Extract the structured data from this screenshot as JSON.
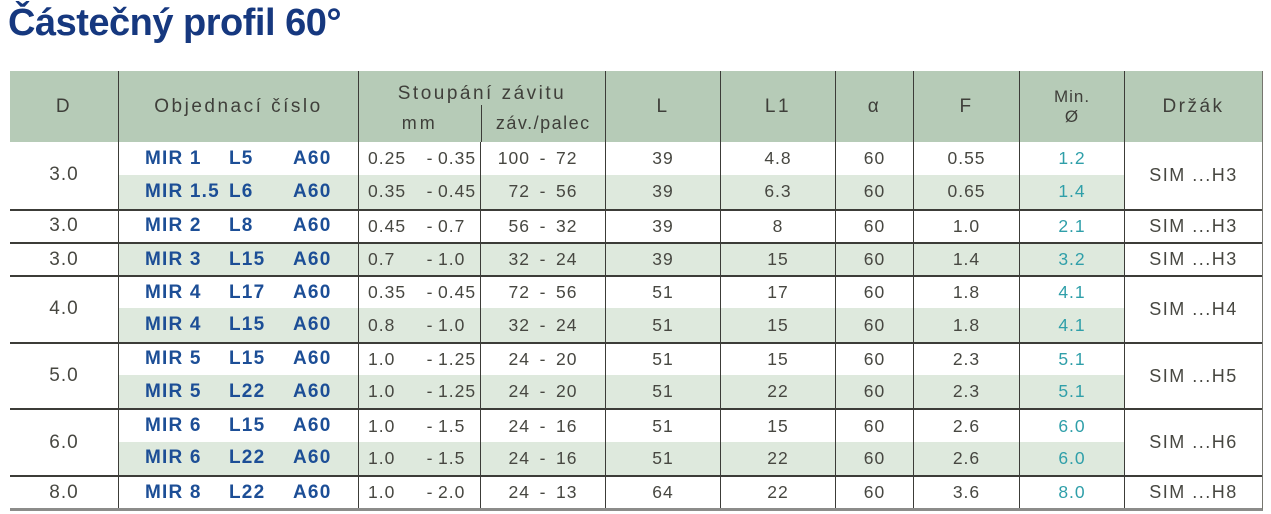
{
  "title": "Částečný profil 60°",
  "punctuation": {
    "dash": "-"
  },
  "colors": {
    "title_blue": "#16387f",
    "order_code_blue": "#1c4e96",
    "min_diameter_teal": "#2f9fa9",
    "header_green": "#b6cbb7",
    "row_stripe_green": "#dee9dd"
  },
  "headers": {
    "d": "D",
    "order": "Objednací číslo",
    "pitch_group": "Stoupání závitu",
    "pitch_mm": "mm",
    "pitch_tpi": "záv./palec",
    "l": "L",
    "l1": "L1",
    "alpha": "α",
    "f": "F",
    "min_line1": "Min.",
    "min_line2": "Ø",
    "holder": "Držák"
  },
  "groups": [
    {
      "d": "3.0",
      "holder": "SIM ...H3"
    },
    {
      "d": "3.0",
      "holder": "SIM ...H3"
    },
    {
      "d": "3.0",
      "holder": "SIM ...H3"
    },
    {
      "d": "4.0",
      "holder": "SIM ...H4"
    },
    {
      "d": "5.0",
      "holder": "SIM ...H5"
    },
    {
      "d": "6.0",
      "holder": "SIM ...H6"
    },
    {
      "d": "8.0",
      "holder": "SIM ...H8"
    }
  ],
  "rows": [
    {
      "code_mir": "MIR 1",
      "code_l": "L5",
      "code_a": "A60",
      "mm_min": "0.25",
      "mm_max": "0.35",
      "tpi_min": "100",
      "tpi_max": "72",
      "l": "39",
      "l1": "4.8",
      "alpha": "60",
      "f": "0.55",
      "min_d": "1.2"
    },
    {
      "code_mir": "MIR 1.5",
      "code_l": "L6",
      "code_a": "A60",
      "mm_min": "0.35",
      "mm_max": "0.45",
      "tpi_min": "72",
      "tpi_max": "56",
      "l": "39",
      "l1": "6.3",
      "alpha": "60",
      "f": "0.65",
      "min_d": "1.4"
    },
    {
      "code_mir": "MIR 2",
      "code_l": "L8",
      "code_a": "A60",
      "mm_min": "0.45",
      "mm_max": "0.7",
      "tpi_min": "56",
      "tpi_max": "32",
      "l": "39",
      "l1": "8",
      "alpha": "60",
      "f": "1.0",
      "min_d": "2.1"
    },
    {
      "code_mir": "MIR 3",
      "code_l": "L15",
      "code_a": "A60",
      "mm_min": "0.7",
      "mm_max": "1.0",
      "tpi_min": "32",
      "tpi_max": "24",
      "l": "39",
      "l1": "15",
      "alpha": "60",
      "f": "1.4",
      "min_d": "3.2"
    },
    {
      "code_mir": "MIR 4",
      "code_l": "L17",
      "code_a": "A60",
      "mm_min": "0.35",
      "mm_max": "0.45",
      "tpi_min": "72",
      "tpi_max": "56",
      "l": "51",
      "l1": "17",
      "alpha": "60",
      "f": "1.8",
      "min_d": "4.1"
    },
    {
      "code_mir": "MIR 4",
      "code_l": "L15",
      "code_a": "A60",
      "mm_min": "0.8",
      "mm_max": "1.0",
      "tpi_min": "32",
      "tpi_max": "24",
      "l": "51",
      "l1": "15",
      "alpha": "60",
      "f": "1.8",
      "min_d": "4.1"
    },
    {
      "code_mir": "MIR 5",
      "code_l": "L15",
      "code_a": "A60",
      "mm_min": "1.0",
      "mm_max": "1.25",
      "tpi_min": "24",
      "tpi_max": "20",
      "l": "51",
      "l1": "15",
      "alpha": "60",
      "f": "2.3",
      "min_d": "5.1"
    },
    {
      "code_mir": "MIR 5",
      "code_l": "L22",
      "code_a": "A60",
      "mm_min": "1.0",
      "mm_max": "1.25",
      "tpi_min": "24",
      "tpi_max": "20",
      "l": "51",
      "l1": "22",
      "alpha": "60",
      "f": "2.3",
      "min_d": "5.1"
    },
    {
      "code_mir": "MIR 6",
      "code_l": "L15",
      "code_a": "A60",
      "mm_min": "1.0",
      "mm_max": "1.5",
      "tpi_min": "24",
      "tpi_max": "16",
      "l": "51",
      "l1": "15",
      "alpha": "60",
      "f": "2.6",
      "min_d": "6.0"
    },
    {
      "code_mir": "MIR 6",
      "code_l": "L22",
      "code_a": "A60",
      "mm_min": "1.0",
      "mm_max": "1.5",
      "tpi_min": "24",
      "tpi_max": "16",
      "l": "51",
      "l1": "22",
      "alpha": "60",
      "f": "2.6",
      "min_d": "6.0"
    },
    {
      "code_mir": "MIR 8",
      "code_l": "L22",
      "code_a": "A60",
      "mm_min": "1.0",
      "mm_max": "2.0",
      "tpi_min": "24",
      "tpi_max": "13",
      "l": "64",
      "l1": "22",
      "alpha": "60",
      "f": "3.6",
      "min_d": "8.0"
    }
  ]
}
